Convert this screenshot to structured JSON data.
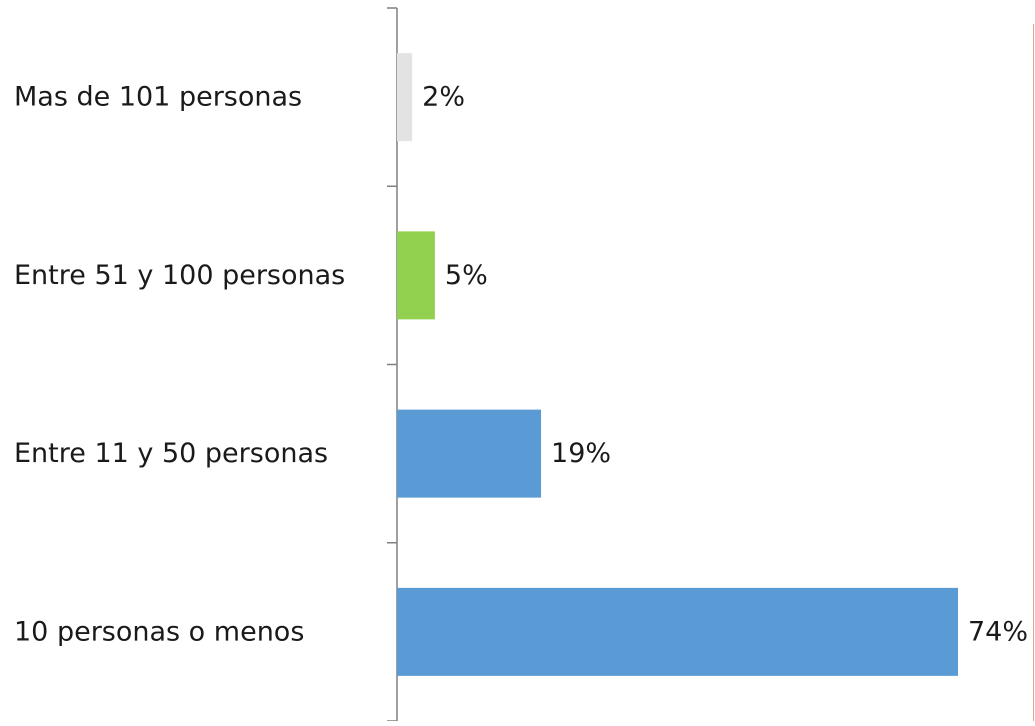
{
  "chart_data": {
    "type": "bar",
    "orientation": "horizontal",
    "categories": [
      "Mas de 101 personas",
      "Entre 51 y 100 personas",
      "Entre 11 y 50 personas",
      "10 personas o menos"
    ],
    "values": [
      2,
      5,
      19,
      74
    ],
    "value_labels": [
      "2%",
      "5%",
      "19%",
      "74%"
    ],
    "bar_colors": [
      "#e3e3e3",
      "#92d050",
      "#5b9bd5",
      "#5b9bd5"
    ],
    "xlim": [
      0,
      74
    ],
    "grid": false,
    "legend": "none"
  }
}
